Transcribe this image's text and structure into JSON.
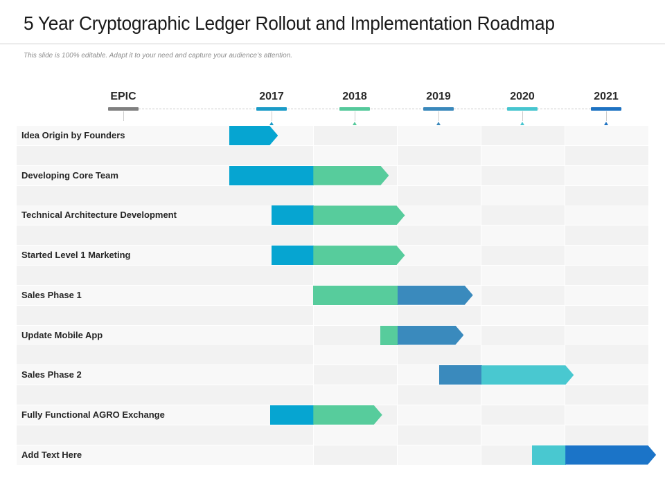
{
  "title": "5 Year Cryptographic Ledger Rollout and Implementation Roadmap",
  "subtitle": "This slide is 100% editable. Adapt it to your need and capture your audience’s attention.",
  "header": {
    "epic_label": "EPIC",
    "years": [
      {
        "label": "2017",
        "color": "#1b9bc7"
      },
      {
        "label": "2018",
        "color": "#55c99b"
      },
      {
        "label": "2019",
        "color": "#3a88bb"
      },
      {
        "label": "2020",
        "color": "#47c5cf"
      },
      {
        "label": "2021",
        "color": "#1e72c2"
      }
    ],
    "epic_color": "#808080"
  },
  "colors": {
    "y2017": "#06a5d1",
    "y2018": "#57cc9c",
    "y2019": "#3a8abd",
    "y2020": "#49c8d0",
    "y2021": "#1b74c8",
    "band_light": "#f8f8f8",
    "band_dark": "#f2f2f2"
  },
  "chart_data": {
    "type": "gantt",
    "title": "5 Year Cryptographic Ledger Rollout and Implementation Roadmap",
    "x_unit": "year",
    "x_range": [
      2017,
      2022
    ],
    "categories": [
      "2017",
      "2018",
      "2019",
      "2020",
      "2021"
    ],
    "rows": [
      {
        "label": "Idea Origin by Founders",
        "segments": [
          {
            "start": 2017.0,
            "end": 2017.58,
            "color": "y2017"
          }
        ]
      },
      {
        "label": "Developing Core Team",
        "segments": [
          {
            "start": 2017.0,
            "end": 2018.0,
            "color": "y2017"
          },
          {
            "start": 2018.0,
            "end": 2018.9,
            "color": "y2018"
          }
        ]
      },
      {
        "label": "Technical Architecture Development",
        "segments": [
          {
            "start": 2017.5,
            "end": 2018.0,
            "color": "y2017"
          },
          {
            "start": 2018.0,
            "end": 2019.09,
            "color": "y2018"
          }
        ]
      },
      {
        "label": "Started Level 1 Marketing",
        "segments": [
          {
            "start": 2017.5,
            "end": 2018.0,
            "color": "y2017"
          },
          {
            "start": 2018.0,
            "end": 2019.09,
            "color": "y2018"
          }
        ]
      },
      {
        "label": "Sales Phase 1",
        "segments": [
          {
            "start": 2018.0,
            "end": 2019.0,
            "color": "y2018"
          },
          {
            "start": 2019.0,
            "end": 2019.9,
            "color": "y2019"
          }
        ]
      },
      {
        "label": "Update Mobile App",
        "segments": [
          {
            "start": 2018.8,
            "end": 2019.0,
            "color": "y2018"
          },
          {
            "start": 2019.0,
            "end": 2019.79,
            "color": "y2019"
          }
        ]
      },
      {
        "label": "Sales Phase 2",
        "segments": [
          {
            "start": 2019.5,
            "end": 2020.0,
            "color": "y2019"
          },
          {
            "start": 2020.0,
            "end": 2021.1,
            "color": "y2020"
          }
        ]
      },
      {
        "label": "Fully Functional AGRO Exchange",
        "segments": [
          {
            "start": 2017.49,
            "end": 2018.0,
            "color": "y2017"
          },
          {
            "start": 2018.0,
            "end": 2018.82,
            "color": "y2018"
          }
        ]
      },
      {
        "label": "Add Text Here",
        "segments": [
          {
            "start": 2020.6,
            "end": 2021.0,
            "color": "y2020"
          },
          {
            "start": 2021.0,
            "end": 2022.08,
            "color": "y2021"
          }
        ]
      }
    ]
  }
}
